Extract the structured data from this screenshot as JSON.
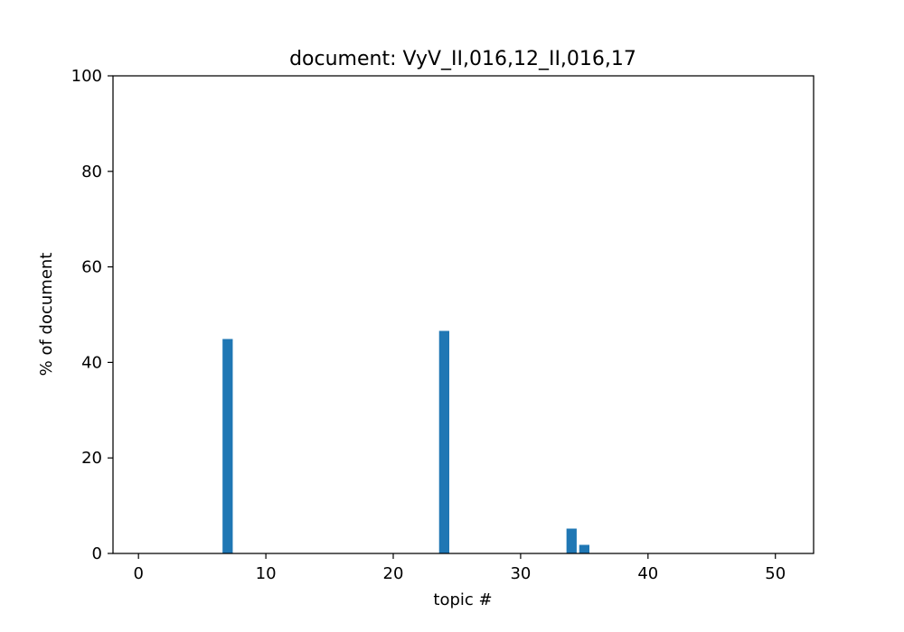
{
  "chart_data": {
    "type": "bar",
    "title": "document: VyV_II,016,12_II,016,17",
    "xlabel": "topic #",
    "ylabel": "% of document",
    "xlim": [
      -2,
      53
    ],
    "ylim": [
      0,
      100
    ],
    "xticks": [
      0,
      10,
      20,
      30,
      40,
      50
    ],
    "yticks": [
      0,
      20,
      40,
      60,
      80,
      100
    ],
    "grid": false,
    "bar_color": "#1f77b4",
    "bars": [
      {
        "x": 0,
        "value": 0
      },
      {
        "x": 1,
        "value": 0
      },
      {
        "x": 2,
        "value": 0
      },
      {
        "x": 3,
        "value": 0
      },
      {
        "x": 4,
        "value": 0
      },
      {
        "x": 5,
        "value": 0
      },
      {
        "x": 6,
        "value": 0
      },
      {
        "x": 7,
        "value": 44.9
      },
      {
        "x": 8,
        "value": 0
      },
      {
        "x": 9,
        "value": 0
      },
      {
        "x": 10,
        "value": 0
      },
      {
        "x": 11,
        "value": 0
      },
      {
        "x": 12,
        "value": 0
      },
      {
        "x": 13,
        "value": 0
      },
      {
        "x": 14,
        "value": 0
      },
      {
        "x": 15,
        "value": 0
      },
      {
        "x": 16,
        "value": 0
      },
      {
        "x": 17,
        "value": 0
      },
      {
        "x": 18,
        "value": 0
      },
      {
        "x": 19,
        "value": 0
      },
      {
        "x": 20,
        "value": 0
      },
      {
        "x": 21,
        "value": 0
      },
      {
        "x": 22,
        "value": 0
      },
      {
        "x": 23,
        "value": 0
      },
      {
        "x": 24,
        "value": 46.6
      },
      {
        "x": 25,
        "value": 0
      },
      {
        "x": 26,
        "value": 0
      },
      {
        "x": 27,
        "value": 0
      },
      {
        "x": 28,
        "value": 0
      },
      {
        "x": 29,
        "value": 0
      },
      {
        "x": 30,
        "value": 0
      },
      {
        "x": 31,
        "value": 0
      },
      {
        "x": 32,
        "value": 0
      },
      {
        "x": 33,
        "value": 0
      },
      {
        "x": 34,
        "value": 5.2
      },
      {
        "x": 35,
        "value": 1.8
      },
      {
        "x": 36,
        "value": 0
      },
      {
        "x": 37,
        "value": 0
      },
      {
        "x": 38,
        "value": 0
      },
      {
        "x": 39,
        "value": 0
      },
      {
        "x": 40,
        "value": 0
      },
      {
        "x": 41,
        "value": 0
      },
      {
        "x": 42,
        "value": 0
      },
      {
        "x": 43,
        "value": 0
      },
      {
        "x": 44,
        "value": 0
      },
      {
        "x": 45,
        "value": 0
      },
      {
        "x": 46,
        "value": 0
      },
      {
        "x": 47,
        "value": 0
      },
      {
        "x": 48,
        "value": 0
      },
      {
        "x": 49,
        "value": 0
      },
      {
        "x": 50,
        "value": 0
      }
    ]
  }
}
